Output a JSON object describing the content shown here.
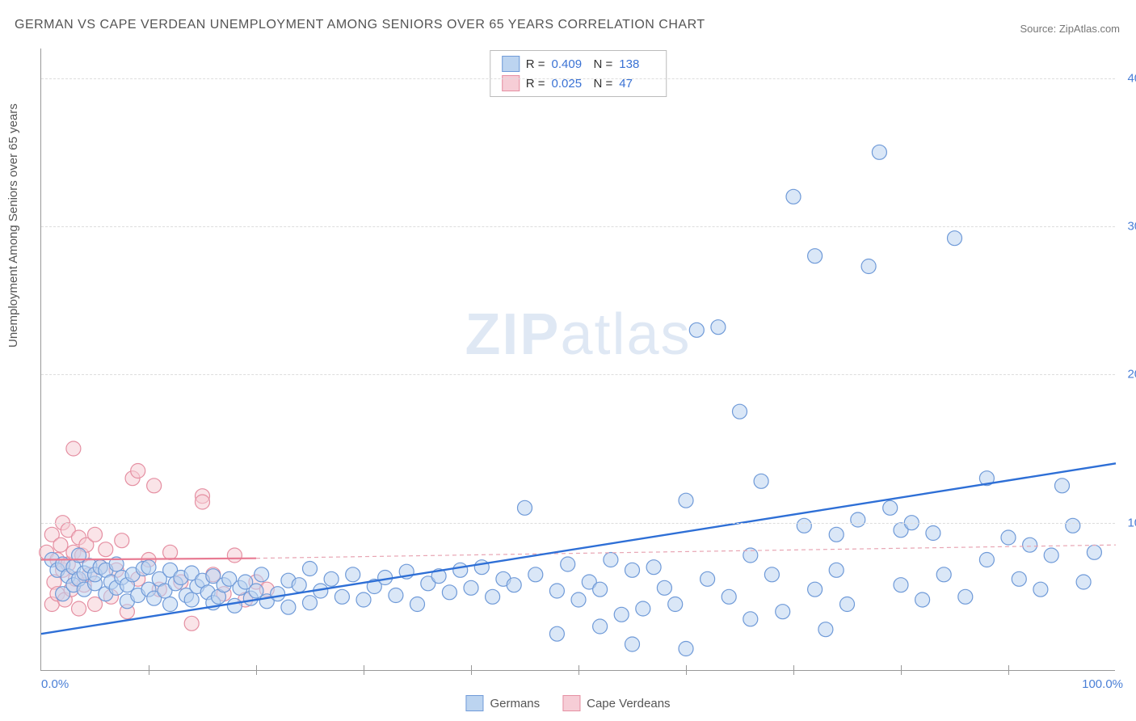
{
  "title": "GERMAN VS CAPE VERDEAN UNEMPLOYMENT AMONG SENIORS OVER 65 YEARS CORRELATION CHART",
  "source": "Source: ZipAtlas.com",
  "y_axis_label": "Unemployment Among Seniors over 65 years",
  "watermark_a": "ZIP",
  "watermark_b": "atlas",
  "chart": {
    "type": "scatter",
    "xlim": [
      0,
      100
    ],
    "ylim": [
      0,
      42
    ],
    "x_ticks": [
      "0.0%",
      "100.0%"
    ],
    "y_ticks": [
      {
        "v": 10,
        "label": "10.0%"
      },
      {
        "v": 20,
        "label": "20.0%"
      },
      {
        "v": 30,
        "label": "30.0%"
      },
      {
        "v": 40,
        "label": "40.0%"
      }
    ],
    "mid_vticks": [
      10,
      20,
      30,
      40,
      50,
      60,
      70,
      80,
      90
    ],
    "background_color": "#ffffff",
    "grid_color": "#dddddd",
    "axis_color": "#999999",
    "tick_label_color": "#4a7fd6",
    "marker_radius": 9,
    "marker_stroke_width": 1.2,
    "series": {
      "germans": {
        "label": "Germans",
        "fill": "#bcd4f0",
        "stroke": "#6f9ad8",
        "fill_opacity": 0.55,
        "R": "0.409",
        "N": "138",
        "trend": {
          "x1": 0,
          "y1": 2.5,
          "x2": 100,
          "y2": 14,
          "color": "#2e6fd6",
          "width": 2.4,
          "dash": "none"
        },
        "trend_ext": null,
        "points": [
          [
            1,
            7.5
          ],
          [
            1.5,
            6.8
          ],
          [
            2,
            7.2
          ],
          [
            2,
            5.2
          ],
          [
            2.5,
            6.4
          ],
          [
            3,
            7.0
          ],
          [
            3,
            5.8
          ],
          [
            3.5,
            7.8
          ],
          [
            3.5,
            6.2
          ],
          [
            4,
            5.5
          ],
          [
            4,
            6.6
          ],
          [
            4.5,
            7.1
          ],
          [
            5,
            5.9
          ],
          [
            5,
            6.5
          ],
          [
            5.5,
            7.0
          ],
          [
            6,
            5.2
          ],
          [
            6,
            6.8
          ],
          [
            6.5,
            6.0
          ],
          [
            7,
            5.6
          ],
          [
            7,
            7.2
          ],
          [
            7.5,
            6.3
          ],
          [
            8,
            5.8
          ],
          [
            8,
            4.7
          ],
          [
            8.5,
            6.5
          ],
          [
            9,
            5.1
          ],
          [
            9.5,
            6.9
          ],
          [
            10,
            5.5
          ],
          [
            10,
            7.0
          ],
          [
            10.5,
            4.9
          ],
          [
            11,
            6.2
          ],
          [
            11.5,
            5.4
          ],
          [
            12,
            6.8
          ],
          [
            12,
            4.5
          ],
          [
            12.5,
            5.9
          ],
          [
            13,
            6.3
          ],
          [
            13.5,
            5.1
          ],
          [
            14,
            6.6
          ],
          [
            14,
            4.8
          ],
          [
            14.5,
            5.7
          ],
          [
            15,
            6.1
          ],
          [
            15.5,
            5.3
          ],
          [
            16,
            4.6
          ],
          [
            16,
            6.4
          ],
          [
            16.5,
            5.0
          ],
          [
            17,
            5.8
          ],
          [
            17.5,
            6.2
          ],
          [
            18,
            4.4
          ],
          [
            18.5,
            5.6
          ],
          [
            19,
            6.0
          ],
          [
            19.5,
            4.9
          ],
          [
            20,
            5.4
          ],
          [
            20.5,
            6.5
          ],
          [
            21,
            4.7
          ],
          [
            22,
            5.2
          ],
          [
            23,
            6.1
          ],
          [
            23,
            4.3
          ],
          [
            24,
            5.8
          ],
          [
            25,
            6.9
          ],
          [
            25,
            4.6
          ],
          [
            26,
            5.4
          ],
          [
            27,
            6.2
          ],
          [
            28,
            5.0
          ],
          [
            29,
            6.5
          ],
          [
            30,
            4.8
          ],
          [
            31,
            5.7
          ],
          [
            32,
            6.3
          ],
          [
            33,
            5.1
          ],
          [
            34,
            6.7
          ],
          [
            35,
            4.5
          ],
          [
            36,
            5.9
          ],
          [
            37,
            6.4
          ],
          [
            38,
            5.3
          ],
          [
            39,
            6.8
          ],
          [
            40,
            5.6
          ],
          [
            41,
            7.0
          ],
          [
            42,
            5.0
          ],
          [
            43,
            6.2
          ],
          [
            44,
            5.8
          ],
          [
            45,
            11.0
          ],
          [
            46,
            6.5
          ],
          [
            48,
            5.4
          ],
          [
            49,
            7.2
          ],
          [
            50,
            4.8
          ],
          [
            51,
            6.0
          ],
          [
            52,
            5.5
          ],
          [
            53,
            7.5
          ],
          [
            54,
            3.8
          ],
          [
            55,
            6.8
          ],
          [
            56,
            4.2
          ],
          [
            57,
            7.0
          ],
          [
            58,
            5.6
          ],
          [
            59,
            4.5
          ],
          [
            60,
            11.5
          ],
          [
            61,
            23.0
          ],
          [
            62,
            6.2
          ],
          [
            63,
            23.2
          ],
          [
            64,
            5.0
          ],
          [
            65,
            17.5
          ],
          [
            66,
            7.8
          ],
          [
            66,
            3.5
          ],
          [
            67,
            12.8
          ],
          [
            68,
            6.5
          ],
          [
            69,
            4.0
          ],
          [
            70,
            32.0
          ],
          [
            71,
            9.8
          ],
          [
            72,
            28.0
          ],
          [
            72,
            5.5
          ],
          [
            73,
            2.8
          ],
          [
            74,
            9.2
          ],
          [
            74,
            6.8
          ],
          [
            75,
            4.5
          ],
          [
            76,
            10.2
          ],
          [
            77,
            27.3
          ],
          [
            78,
            35.0
          ],
          [
            79,
            11.0
          ],
          [
            80,
            5.8
          ],
          [
            80,
            9.5
          ],
          [
            81,
            10.0
          ],
          [
            82,
            4.8
          ],
          [
            83,
            9.3
          ],
          [
            84,
            6.5
          ],
          [
            85,
            29.2
          ],
          [
            86,
            5.0
          ],
          [
            88,
            13.0
          ],
          [
            88,
            7.5
          ],
          [
            90,
            9.0
          ],
          [
            91,
            6.2
          ],
          [
            92,
            8.5
          ],
          [
            93,
            5.5
          ],
          [
            94,
            7.8
          ],
          [
            95,
            12.5
          ],
          [
            96,
            9.8
          ],
          [
            97,
            6.0
          ],
          [
            98,
            8.0
          ],
          [
            55,
            1.8
          ],
          [
            60,
            1.5
          ],
          [
            48,
            2.5
          ],
          [
            52,
            3.0
          ]
        ]
      },
      "cape_verdeans": {
        "label": "Cape Verdeans",
        "fill": "#f6cdd6",
        "stroke": "#e58fa2",
        "fill_opacity": 0.55,
        "R": "0.025",
        "N": "47",
        "trend": {
          "x1": 0,
          "y1": 7.5,
          "x2": 20,
          "y2": 7.6,
          "color": "#e87b93",
          "width": 2.2,
          "dash": "none"
        },
        "trend_ext": {
          "x1": 20,
          "y1": 7.6,
          "x2": 100,
          "y2": 8.5,
          "color": "#e8a5b3",
          "width": 1.2,
          "dash": "5,4"
        },
        "points": [
          [
            0.5,
            8.0
          ],
          [
            1,
            4.5
          ],
          [
            1,
            9.2
          ],
          [
            1.2,
            6.0
          ],
          [
            1.5,
            7.5
          ],
          [
            1.5,
            5.2
          ],
          [
            1.8,
            8.5
          ],
          [
            2,
            6.8
          ],
          [
            2,
            10.0
          ],
          [
            2.2,
            4.8
          ],
          [
            2.5,
            7.2
          ],
          [
            2.5,
            9.5
          ],
          [
            2.8,
            5.5
          ],
          [
            3,
            15.0
          ],
          [
            3,
            8.0
          ],
          [
            3.2,
            6.2
          ],
          [
            3.5,
            9.0
          ],
          [
            3.5,
            4.2
          ],
          [
            3.8,
            7.8
          ],
          [
            4,
            5.8
          ],
          [
            4.2,
            8.5
          ],
          [
            4.5,
            6.5
          ],
          [
            5,
            9.2
          ],
          [
            5,
            4.5
          ],
          [
            5.5,
            7.0
          ],
          [
            6,
            8.2
          ],
          [
            6.5,
            5.0
          ],
          [
            7,
            6.8
          ],
          [
            7.5,
            8.8
          ],
          [
            8,
            4.0
          ],
          [
            8.5,
            13.0
          ],
          [
            9,
            13.5
          ],
          [
            9,
            6.2
          ],
          [
            10,
            7.5
          ],
          [
            10.5,
            12.5
          ],
          [
            11,
            5.5
          ],
          [
            12,
            8.0
          ],
          [
            13,
            6.0
          ],
          [
            14,
            3.2
          ],
          [
            15,
            11.8
          ],
          [
            15,
            11.4
          ],
          [
            16,
            6.5
          ],
          [
            17,
            5.2
          ],
          [
            18,
            7.8
          ],
          [
            19,
            4.8
          ],
          [
            20,
            6.0
          ],
          [
            21,
            5.5
          ]
        ]
      }
    }
  },
  "legend_labels": {
    "r": "R =",
    "n": "N ="
  }
}
